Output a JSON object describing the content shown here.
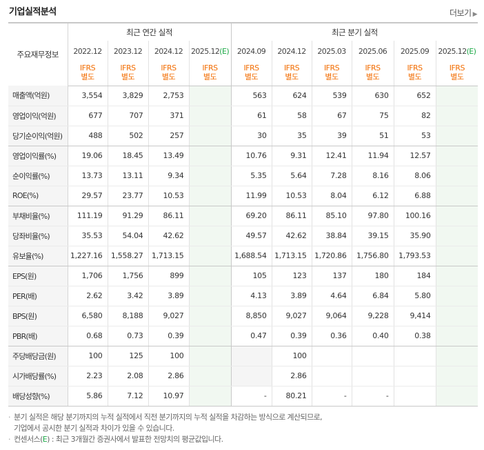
{
  "header": {
    "title": "기업실적분석",
    "more_label": "더보기"
  },
  "table": {
    "row_header_label": "주요재무정보",
    "group_annual": "최근 연간 실적",
    "group_quarterly": "최근 분기 실적",
    "periods": [
      {
        "label": "2022.12",
        "est": false,
        "basis": "IFRS",
        "basis2": "별도"
      },
      {
        "label": "2023.12",
        "est": false,
        "basis": "IFRS",
        "basis2": "별도"
      },
      {
        "label": "2024.12",
        "est": false,
        "basis": "IFRS",
        "basis2": "별도"
      },
      {
        "label": "2025.12",
        "est": true,
        "basis": "IFRS",
        "basis2": "별도"
      },
      {
        "label": "2024.09",
        "est": false,
        "basis": "IFRS",
        "basis2": "별도"
      },
      {
        "label": "2024.12",
        "est": false,
        "basis": "IFRS",
        "basis2": "별도"
      },
      {
        "label": "2025.03",
        "est": false,
        "basis": "IFRS",
        "basis2": "별도"
      },
      {
        "label": "2025.06",
        "est": false,
        "basis": "IFRS",
        "basis2": "별도"
      },
      {
        "label": "2025.09",
        "est": false,
        "basis": "IFRS",
        "basis2": "별도"
      },
      {
        "label": "2025.12",
        "est": true,
        "basis": "IFRS",
        "basis2": "별도"
      }
    ],
    "est_mark": "(E)",
    "rows": [
      {
        "label": "매출액(억원)",
        "values": [
          "3,554",
          "3,829",
          "2,753",
          "",
          "563",
          "624",
          "539",
          "630",
          "652",
          ""
        ]
      },
      {
        "label": "영업이익(억원)",
        "values": [
          "677",
          "707",
          "371",
          "",
          "61",
          "58",
          "67",
          "75",
          "82",
          ""
        ]
      },
      {
        "label": "당기순이익(억원)",
        "values": [
          "488",
          "502",
          "257",
          "",
          "30",
          "35",
          "39",
          "51",
          "53",
          ""
        ],
        "group_end": true
      },
      {
        "label": "영업이익률(%)",
        "values": [
          "19.06",
          "18.45",
          "13.49",
          "",
          "10.76",
          "9.31",
          "12.41",
          "11.94",
          "12.57",
          ""
        ]
      },
      {
        "label": "순이익률(%)",
        "values": [
          "13.73",
          "13.11",
          "9.34",
          "",
          "5.35",
          "5.64",
          "7.28",
          "8.16",
          "8.06",
          ""
        ]
      },
      {
        "label": "ROE(%)",
        "values": [
          "29.57",
          "23.77",
          "10.53",
          "",
          "11.99",
          "10.53",
          "8.04",
          "6.12",
          "6.88",
          ""
        ],
        "group_end": true
      },
      {
        "label": "부채비율(%)",
        "values": [
          "111.19",
          "91.29",
          "86.11",
          "",
          "69.20",
          "86.11",
          "85.10",
          "97.80",
          "100.16",
          ""
        ]
      },
      {
        "label": "당좌비율(%)",
        "values": [
          "35.53",
          "54.04",
          "42.62",
          "",
          "49.57",
          "42.62",
          "38.84",
          "39.15",
          "35.90",
          ""
        ]
      },
      {
        "label": "유보율(%)",
        "values": [
          "1,227.16",
          "1,558.27",
          "1,713.15",
          "",
          "1,688.54",
          "1,713.15",
          "1,720.86",
          "1,756.80",
          "1,793.53",
          ""
        ],
        "group_end": true
      },
      {
        "label": "EPS(원)",
        "values": [
          "1,706",
          "1,756",
          "899",
          "",
          "105",
          "123",
          "137",
          "180",
          "184",
          ""
        ]
      },
      {
        "label": "PER(배)",
        "values": [
          "2.62",
          "3.42",
          "3.89",
          "",
          "4.13",
          "3.89",
          "4.64",
          "6.84",
          "5.80",
          ""
        ]
      },
      {
        "label": "BPS(원)",
        "values": [
          "6,580",
          "8,188",
          "9,027",
          "",
          "8,850",
          "9,027",
          "9,064",
          "9,228",
          "9,414",
          ""
        ]
      },
      {
        "label": "PBR(배)",
        "values": [
          "0.68",
          "0.73",
          "0.39",
          "",
          "0.47",
          "0.39",
          "0.36",
          "0.40",
          "0.38",
          ""
        ],
        "group_end": true
      },
      {
        "label": "주당배당금(원)",
        "values": [
          "100",
          "125",
          "100",
          "",
          "",
          "100",
          "",
          "",
          "",
          ""
        ],
        "gray": [
          4
        ]
      },
      {
        "label": "시가배당률(%)",
        "values": [
          "2.23",
          "2.08",
          "2.86",
          "",
          "",
          "2.86",
          "",
          "",
          "",
          ""
        ],
        "gray": [
          4
        ]
      },
      {
        "label": "배당성향(%)",
        "values": [
          "5.86",
          "7.12",
          "10.97",
          "",
          "-",
          "80.21",
          "-",
          "-",
          "",
          ""
        ],
        "last": true
      }
    ]
  },
  "notes": {
    "line1": "분기 실적은 해당 분기까지의 누적 실적에서 직전 분기까지의 누적 실적을 차감하는 방식으로 계산되므로,",
    "line2": "기업에서 공시한 분기 실적과 차이가 있을 수 있습니다.",
    "line3_prefix": "컨센서스(",
    "line3_mark": "E",
    "line3_suffix": ") : 최근 3개월간 증권사에서 발표한 전망치의 평균값입니다."
  }
}
